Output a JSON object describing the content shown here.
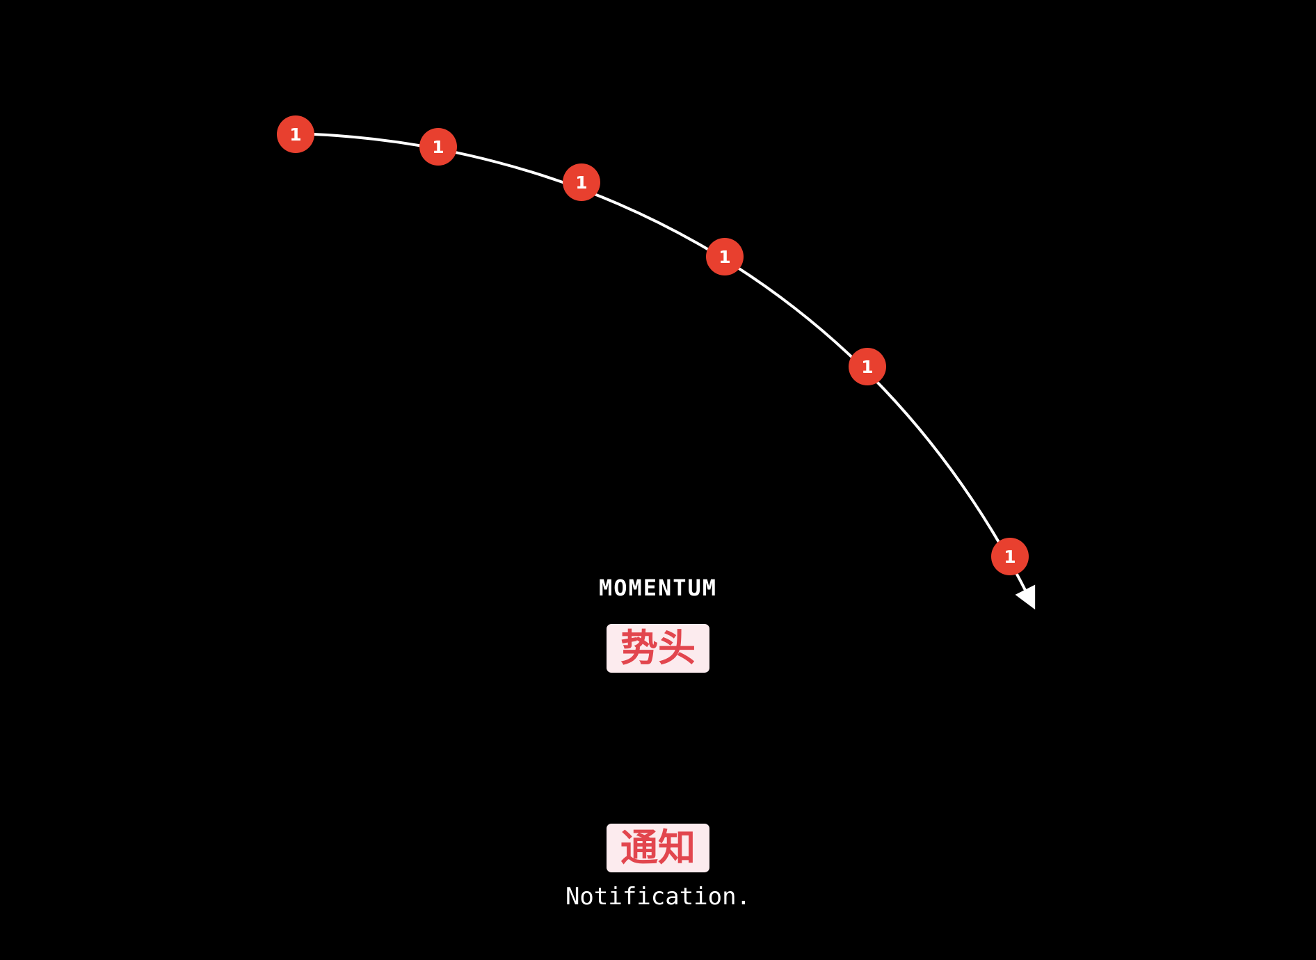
{
  "diagram": {
    "badge_label": "1",
    "badge_count": 6,
    "badge_color": "#e8402f",
    "arc_color": "#ffffff",
    "background_color": "#000000"
  },
  "terms": {
    "momentum_en": "MOMENTUM",
    "momentum_cn": "势头",
    "notification_cn": "通知",
    "notification_en": "Notification."
  },
  "colors": {
    "label_bg": "#fcebee",
    "label_text": "#e2464e"
  }
}
